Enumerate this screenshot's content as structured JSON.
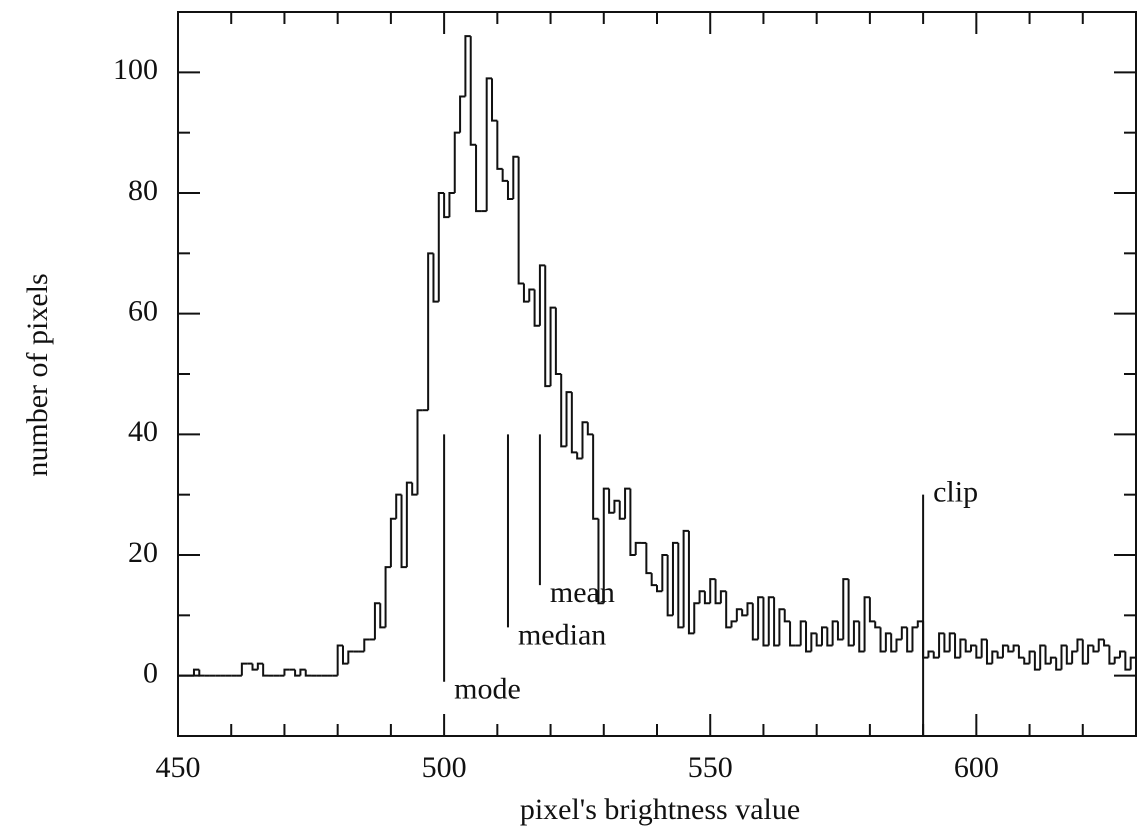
{
  "chart_data": {
    "type": "histogram",
    "xlabel": "pixel's brightness value",
    "ylabel": "number of pixels",
    "bins": [
      450,
      451,
      452,
      453,
      454,
      455,
      456,
      457,
      458,
      459,
      460,
      461,
      462,
      463,
      464,
      465,
      466,
      467,
      468,
      469,
      470,
      471,
      472,
      473,
      474,
      475,
      476,
      477,
      478,
      479,
      480,
      481,
      482,
      483,
      484,
      485,
      486,
      487,
      488,
      489,
      490,
      491,
      492,
      493,
      494,
      495,
      496,
      497,
      498,
      499,
      500,
      501,
      502,
      503,
      504,
      505,
      506,
      507,
      508,
      509,
      510,
      511,
      512,
      513,
      514,
      515,
      516,
      517,
      518,
      519,
      520,
      521,
      522,
      523,
      524,
      525,
      526,
      527,
      528,
      529,
      530,
      531,
      532,
      533,
      534,
      535,
      536,
      537,
      538,
      539,
      540,
      541,
      542,
      543,
      544,
      545,
      546,
      547,
      548,
      549,
      550,
      551,
      552,
      553,
      554,
      555,
      556,
      557,
      558,
      559,
      560,
      561,
      562,
      563,
      564,
      565,
      566,
      567,
      568,
      569,
      570,
      571,
      572,
      573,
      574,
      575,
      576,
      577,
      578,
      579,
      580,
      581,
      582,
      583,
      584,
      585,
      586,
      587,
      588,
      589,
      590,
      591,
      592,
      593,
      594,
      595,
      596,
      597,
      598,
      599,
      600,
      601,
      602,
      603,
      604,
      605,
      606,
      607,
      608,
      609,
      610,
      611,
      612,
      613,
      614,
      615,
      616,
      617,
      618,
      619,
      620,
      621,
      622,
      623,
      624,
      625,
      626,
      627,
      628,
      629,
      630
    ],
    "counts": [
      0,
      0,
      0,
      1,
      0,
      0,
      0,
      0,
      0,
      0,
      0,
      0,
      2,
      2,
      1,
      2,
      0,
      0,
      0,
      0,
      1,
      1,
      0,
      1,
      0,
      0,
      0,
      0,
      0,
      0,
      5,
      2,
      4,
      4,
      4,
      6,
      6,
      12,
      8,
      18,
      26,
      30,
      18,
      32,
      30,
      44,
      44,
      70,
      62,
      80,
      76,
      80,
      90,
      96,
      106,
      88,
      77,
      77,
      99,
      92,
      84,
      82,
      79,
      86,
      65,
      62,
      64,
      58,
      68,
      48,
      61,
      50,
      38,
      47,
      37,
      36,
      42,
      40,
      26,
      12,
      31,
      27,
      29,
      26,
      31,
      20,
      22,
      22,
      17,
      15,
      14,
      20,
      10,
      22,
      8,
      24,
      7,
      12,
      14,
      12,
      16,
      12,
      14,
      8,
      9,
      11,
      10,
      12,
      6,
      13,
      5,
      13,
      5,
      11,
      9,
      5,
      5,
      9,
      4,
      7,
      5,
      8,
      5,
      9,
      6,
      16,
      5,
      9,
      4,
      13,
      9,
      8,
      4,
      7,
      4,
      6,
      8,
      4,
      8,
      9,
      3,
      4,
      3,
      7,
      4,
      7,
      3,
      6,
      4,
      5,
      3,
      6,
      2,
      4,
      3,
      5,
      4,
      5,
      3,
      2,
      4,
      1,
      5,
      2,
      3,
      1,
      5,
      2,
      4,
      6,
      2,
      5,
      4,
      6,
      5,
      2,
      3,
      4,
      1,
      3
    ],
    "color": "#111111",
    "xlim": [
      450,
      630
    ],
    "ylim": [
      -10,
      110
    ],
    "xticks": [
      450,
      500,
      550,
      600
    ],
    "yticks": [
      0,
      20,
      40,
      60,
      80,
      100
    ],
    "xticks_minor": [
      460,
      470,
      480,
      490,
      510,
      520,
      530,
      540,
      560,
      570,
      580,
      590,
      610,
      620
    ],
    "yticks_minor": [
      10,
      30,
      50,
      70,
      90
    ],
    "annotations": [
      {
        "label": "mode",
        "x": 500,
        "y": [
          40,
          -1
        ]
      },
      {
        "label": "median",
        "x": 512,
        "y": [
          40,
          8
        ]
      },
      {
        "label": "mean",
        "x": 518,
        "y": [
          40,
          15
        ]
      },
      {
        "label": "clip",
        "x": 590,
        "y": [
          30,
          -10
        ]
      }
    ]
  }
}
